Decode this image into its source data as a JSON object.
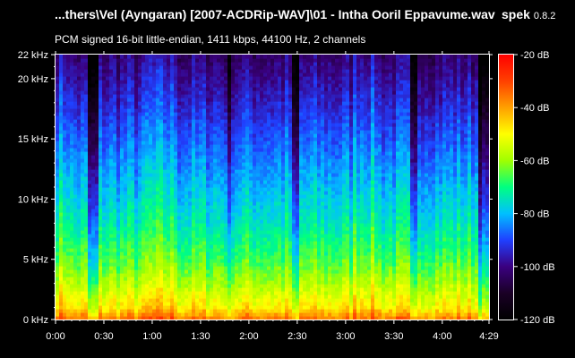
{
  "header": {
    "file_title": "...thers\\Vel (Ayngaran) [2007-ACDRip-WAV]\\01 - Intha Ooril Eppavume.wav",
    "app_name": "spek",
    "app_version": "0.8.2",
    "format_info": "PCM signed 16-bit little-endian, 1411 kbps, 44100 Hz, 2 channels"
  },
  "chart_data": {
    "type": "heatmap",
    "x_axis": {
      "unit": "time",
      "min_seconds": 0,
      "max_seconds": 269,
      "ticks": [
        {
          "seconds": 0,
          "label": "0:00"
        },
        {
          "seconds": 30,
          "label": "0:30"
        },
        {
          "seconds": 60,
          "label": "1:00"
        },
        {
          "seconds": 90,
          "label": "1:30"
        },
        {
          "seconds": 120,
          "label": "2:00"
        },
        {
          "seconds": 150,
          "label": "2:30"
        },
        {
          "seconds": 180,
          "label": "3:00"
        },
        {
          "seconds": 210,
          "label": "3:30"
        },
        {
          "seconds": 240,
          "label": "4:00"
        },
        {
          "seconds": 269,
          "label": "4:29"
        }
      ]
    },
    "y_axis": {
      "unit": "kHz",
      "min": 0,
      "max": 22,
      "ticks": [
        {
          "value": 0,
          "label": "0 kHz"
        },
        {
          "value": 5,
          "label": "5 kHz"
        },
        {
          "value": 10,
          "label": "10 kHz"
        },
        {
          "value": 15,
          "label": "15 kHz"
        },
        {
          "value": 20,
          "label": "20 kHz"
        },
        {
          "value": 22,
          "label": "22 kHz"
        }
      ]
    },
    "color_scale": {
      "min_db": -120,
      "max_db": -20,
      "ticks": [
        {
          "value": -20,
          "label": "-20 dB"
        },
        {
          "value": -40,
          "label": "-40 dB"
        },
        {
          "value": -60,
          "label": "-60 dB"
        },
        {
          "value": -80,
          "label": "-80 dB"
        },
        {
          "value": -100,
          "label": "-100 dB"
        },
        {
          "value": -120,
          "label": "-120 dB"
        }
      ],
      "colors": [
        "#000000",
        "#1a0026",
        "#3a0080",
        "#2040ff",
        "#00c0ff",
        "#00ff80",
        "#a0ff00",
        "#ffff00",
        "#ffa000",
        "#ff4000",
        "#ff0000"
      ]
    },
    "level_profile_db": [
      {
        "khz": 0,
        "db": -35
      },
      {
        "khz": 1,
        "db": -48
      },
      {
        "khz": 3,
        "db": -58
      },
      {
        "khz": 5,
        "db": -66
      },
      {
        "khz": 8,
        "db": -74
      },
      {
        "khz": 10,
        "db": -78
      },
      {
        "khz": 13,
        "db": -84
      },
      {
        "khz": 16,
        "db": -90
      },
      {
        "khz": 19,
        "db": -96
      },
      {
        "khz": 22,
        "db": -102
      }
    ],
    "quiet_segments_seconds": [
      [
        20,
        27
      ],
      [
        107,
        110
      ],
      [
        146,
        151
      ],
      [
        220,
        224
      ],
      [
        263,
        269
      ]
    ],
    "loud_segments_seconds": [
      [
        0,
        8
      ],
      [
        55,
        75
      ],
      [
        185,
        200
      ]
    ]
  }
}
